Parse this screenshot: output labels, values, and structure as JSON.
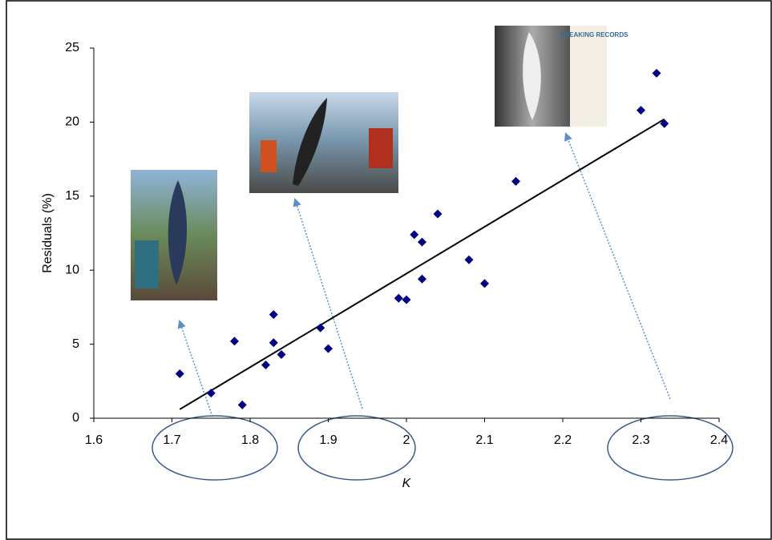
{
  "chart_data": {
    "type": "scatter",
    "x_label": "K",
    "y_label": "Residuals (%)",
    "annotation": "BREAKING RECORDS",
    "xlim": [
      1.6,
      2.4
    ],
    "xticks": [
      1.6,
      1.7,
      1.8,
      1.9,
      2,
      2.1,
      2.2,
      2.3,
      2.4
    ],
    "ylim": [
      0,
      25
    ],
    "yticks": [
      0,
      5,
      10,
      15,
      20,
      25
    ],
    "color": "#000080",
    "x": [
      1.71,
      1.75,
      1.78,
      1.79,
      1.82,
      1.83,
      1.83,
      1.84,
      1.89,
      1.9,
      1.99,
      2.0,
      2.01,
      2.02,
      2.02,
      2.04,
      2.08,
      2.1,
      2.14,
      2.3,
      2.32,
      2.33
    ],
    "values": [
      3.0,
      1.7,
      5.2,
      0.9,
      3.6,
      7.0,
      5.1,
      4.3,
      6.1,
      4.7,
      8.1,
      8.0,
      12.4,
      11.9,
      9.4,
      13.8,
      10.7,
      9.1,
      16.0,
      20.8,
      23.3,
      19.9
    ],
    "trendline": {
      "x": [
        1.71,
        2.33
      ],
      "values": [
        0.6,
        20.2
      ],
      "color": "#000000"
    }
  }
}
